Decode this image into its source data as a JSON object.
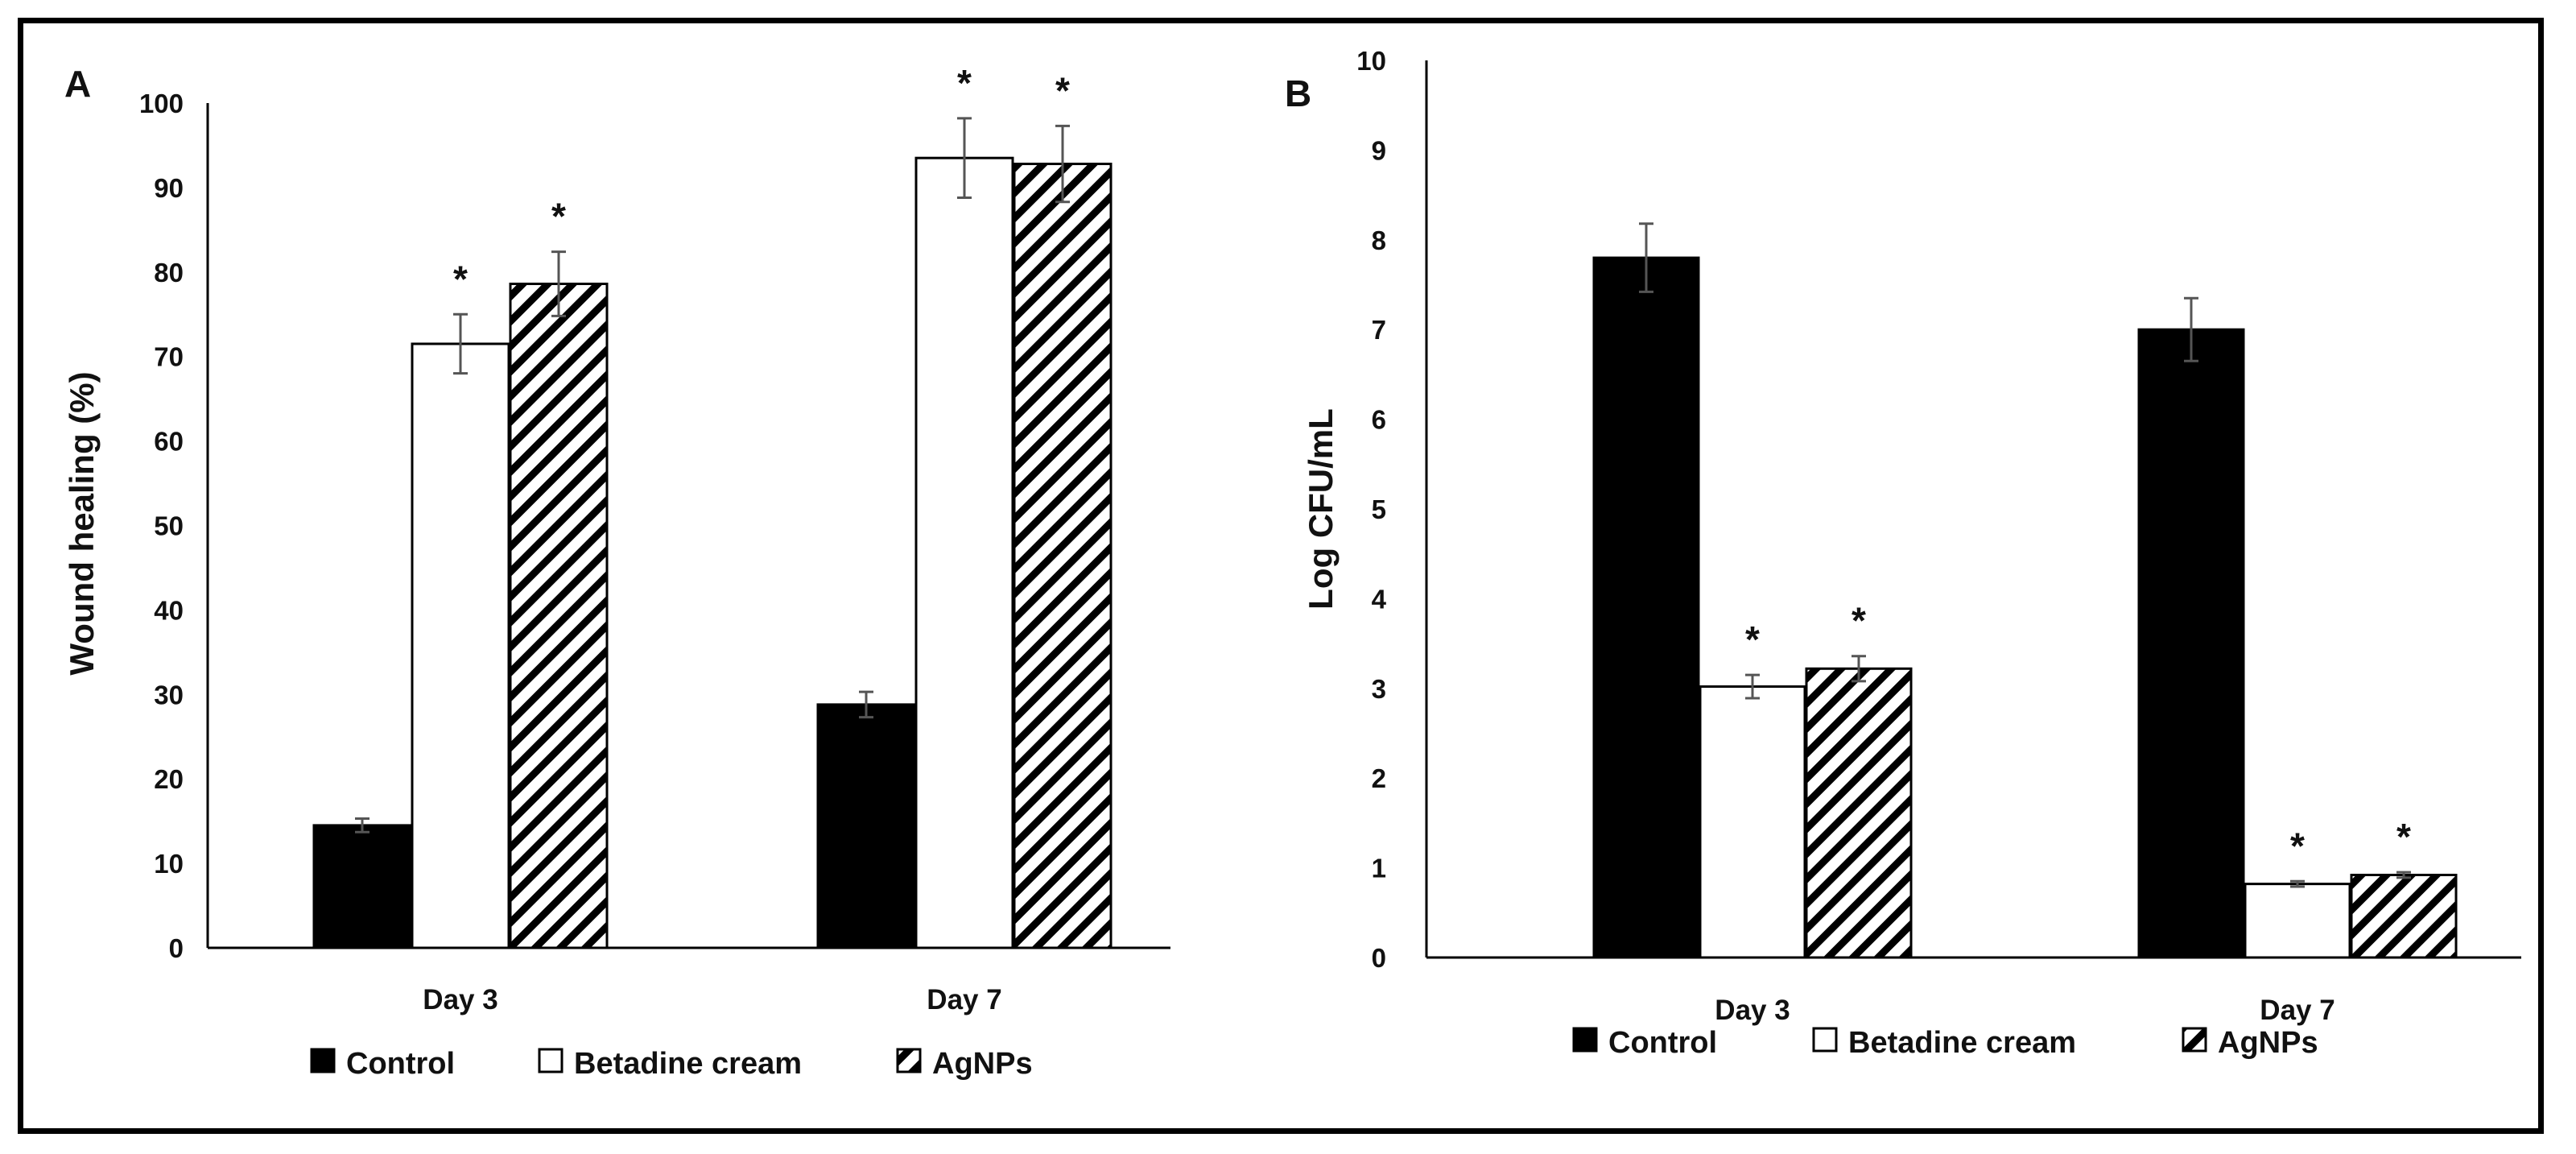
{
  "legend": [
    "Control",
    "Betadine cream",
    "AgNPs"
  ],
  "colors": {
    "control": "#000000",
    "betadine": "#ffffff",
    "agnps_stripe": "#000000",
    "error_bar": "#555555"
  },
  "chart_data": [
    {
      "type": "bar",
      "panel_label": "A",
      "title": "",
      "xlabel": "",
      "ylabel": "Wound healing (%)",
      "ylim": [
        0,
        100
      ],
      "yticks": [
        0,
        10,
        20,
        30,
        40,
        50,
        60,
        70,
        80,
        90,
        100
      ],
      "categories": [
        "Day 3",
        "Day 7"
      ],
      "series": [
        {
          "name": "Control",
          "values": [
            14.5,
            28.8
          ],
          "errors": [
            0.8,
            1.5
          ],
          "significant": [
            false,
            false
          ]
        },
        {
          "name": "Betadine cream",
          "values": [
            71.5,
            93.5
          ],
          "errors": [
            3.5,
            4.7
          ],
          "significant": [
            true,
            true
          ]
        },
        {
          "name": "AgNPs",
          "values": [
            78.6,
            92.8
          ],
          "errors": [
            3.8,
            4.5
          ],
          "significant": [
            true,
            true
          ]
        }
      ],
      "significance_marker": "*",
      "legend": [
        "Control",
        "Betadine cream",
        "AgNPs"
      ]
    },
    {
      "type": "bar",
      "panel_label": "B",
      "title": "",
      "xlabel": "",
      "ylabel": "Log CFU/mL",
      "ylim": [
        0,
        10
      ],
      "yticks": [
        0,
        1,
        2,
        3,
        4,
        5,
        6,
        7,
        8,
        9,
        10
      ],
      "categories": [
        "Day 3",
        "Day 7"
      ],
      "series": [
        {
          "name": "Control",
          "values": [
            7.8,
            7.0
          ],
          "errors": [
            0.38,
            0.35
          ],
          "significant": [
            false,
            false
          ]
        },
        {
          "name": "Betadine cream",
          "values": [
            3.02,
            0.82
          ],
          "errors": [
            0.13,
            0.03
          ],
          "significant": [
            true,
            true
          ]
        },
        {
          "name": "AgNPs",
          "values": [
            3.22,
            0.92
          ],
          "errors": [
            0.14,
            0.03
          ],
          "significant": [
            true,
            true
          ]
        }
      ],
      "significance_marker": "*",
      "legend": [
        "Control",
        "Betadine cream",
        "AgNPs"
      ]
    }
  ]
}
